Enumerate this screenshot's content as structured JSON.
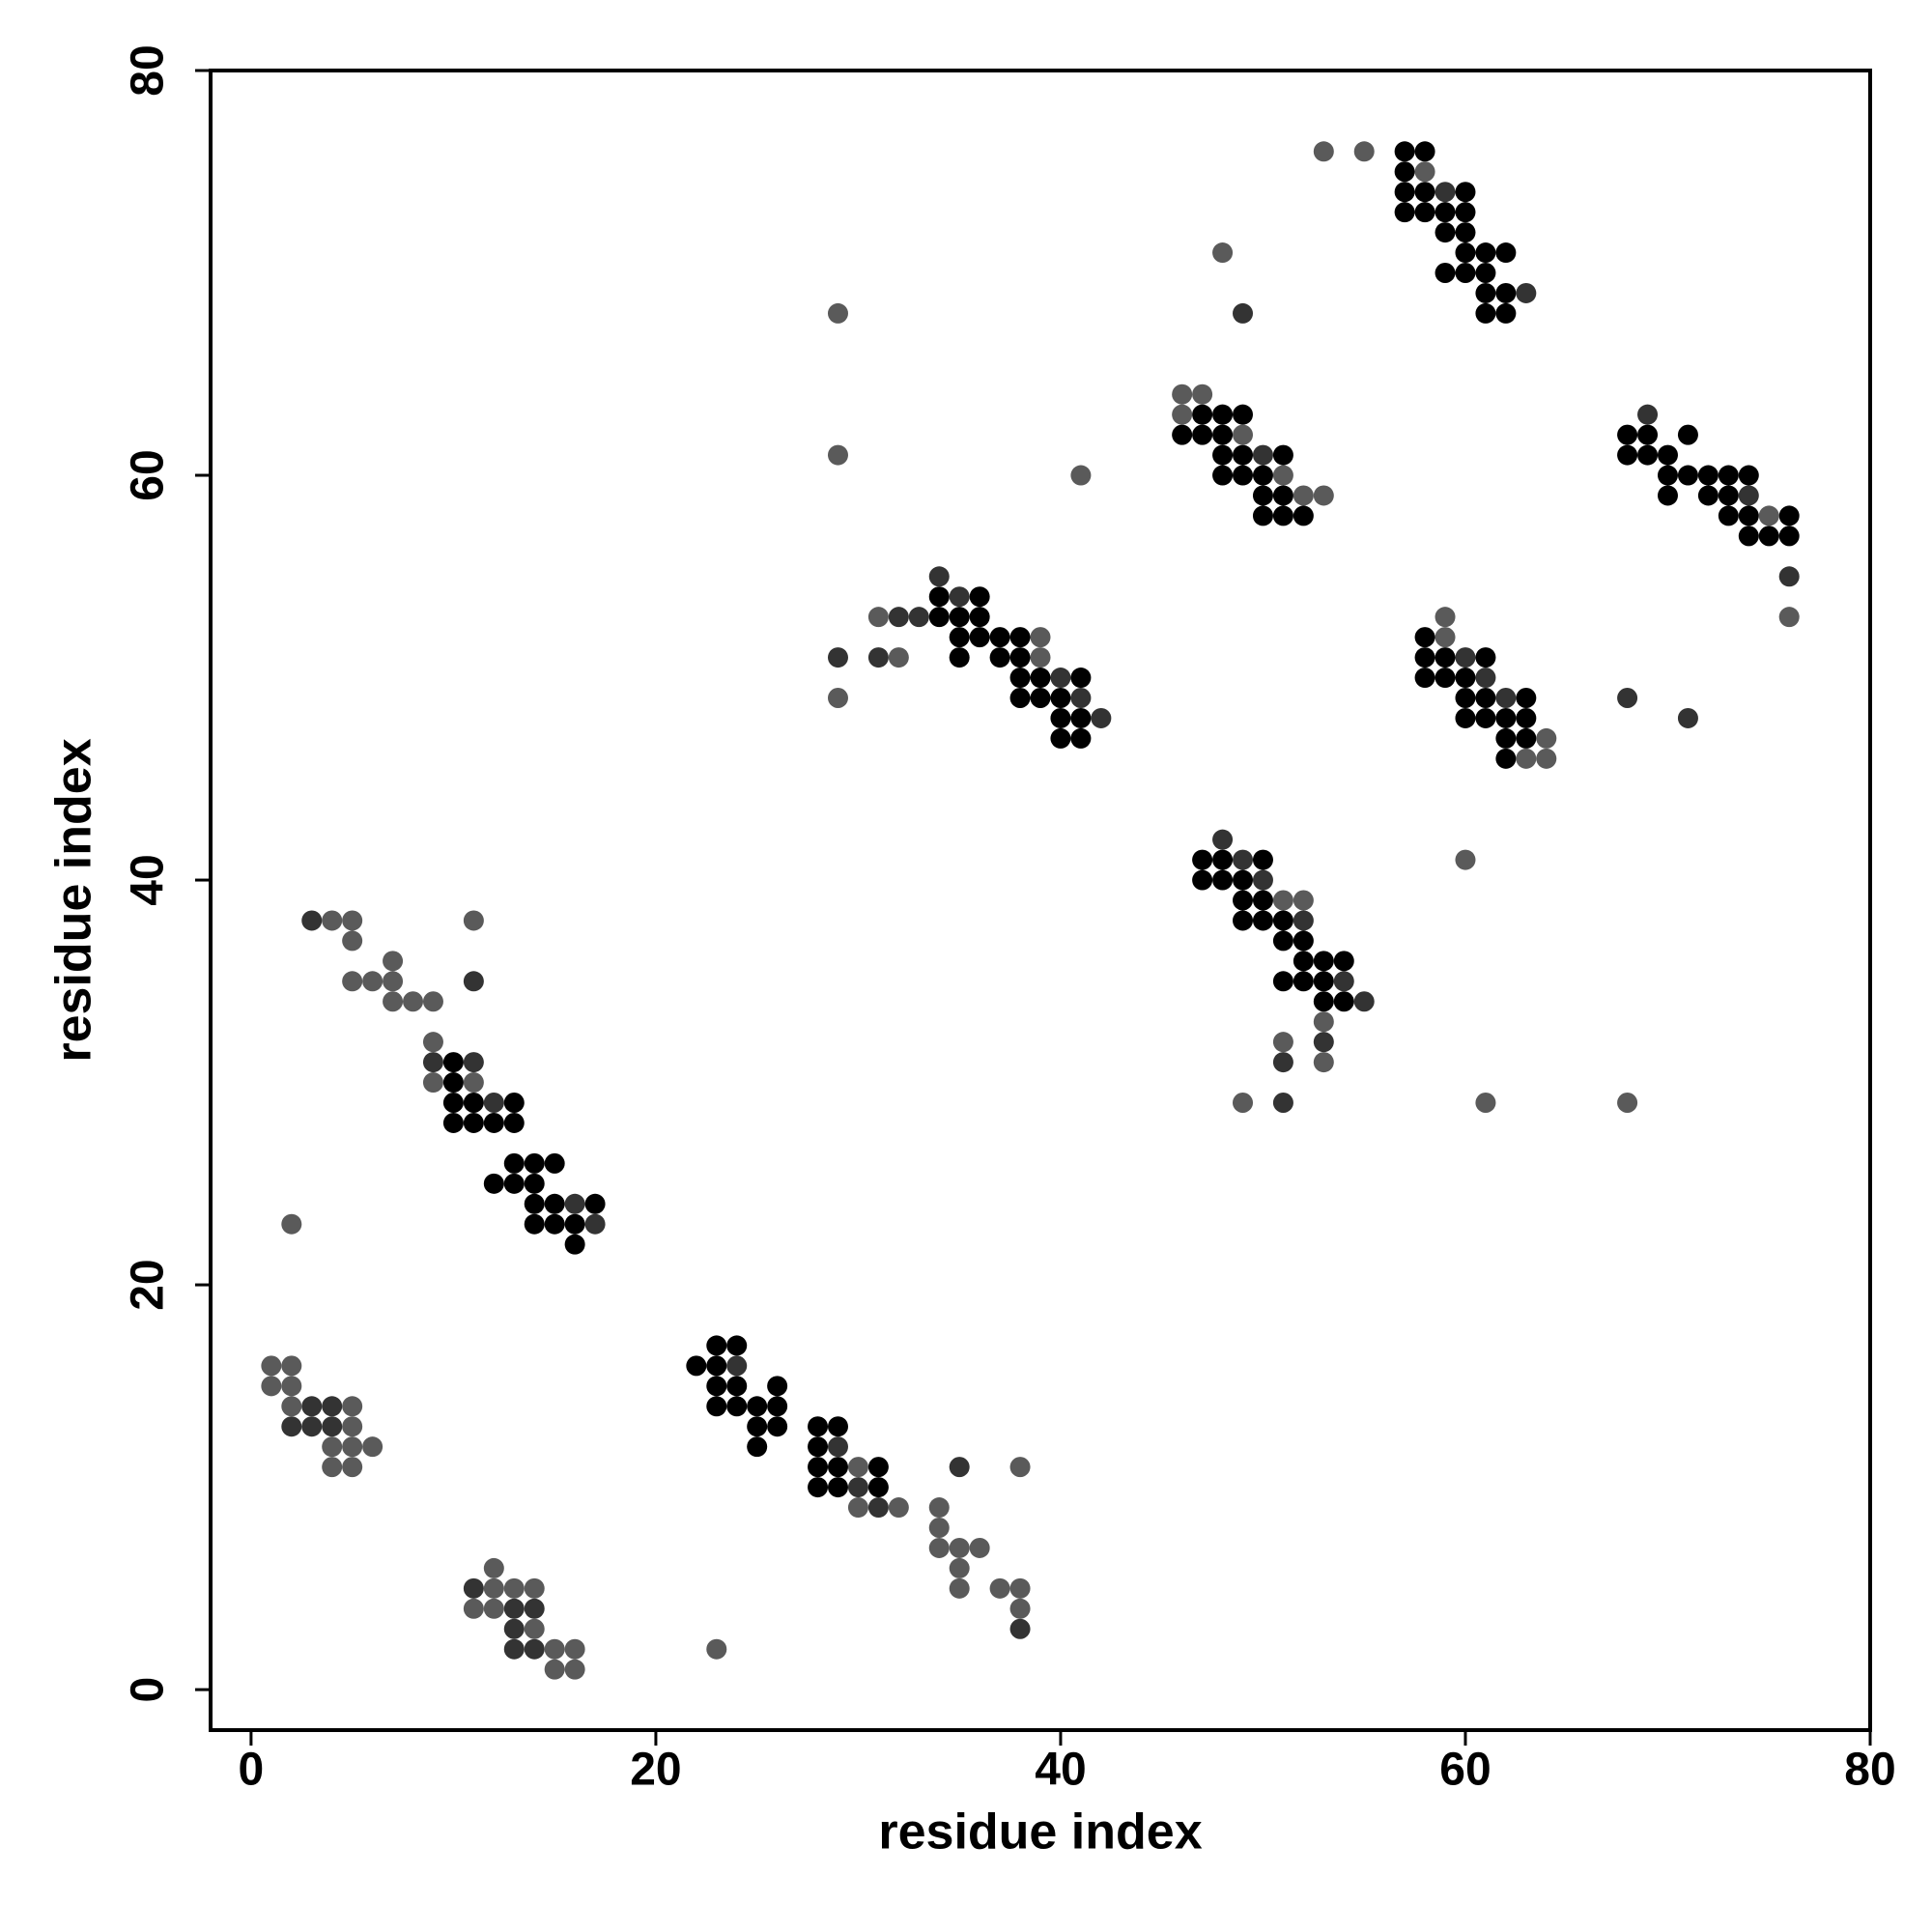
{
  "chart_data": {
    "type": "scatter",
    "x_label": "residue index",
    "y_label": "residue index",
    "xlim": [
      -2,
      80
    ],
    "ylim": [
      -2,
      80
    ],
    "xticks": [
      0,
      20,
      40,
      60,
      80
    ],
    "yticks": [
      0,
      20,
      40,
      60,
      80
    ],
    "series": [
      {
        "color": "#000000",
        "x": [
          10,
          10,
          10,
          11,
          13,
          10,
          11,
          12,
          13,
          13,
          14,
          15,
          12,
          13,
          14,
          14,
          15,
          17,
          14,
          15,
          16,
          16,
          23,
          24,
          22,
          23,
          23,
          24,
          26,
          23,
          24,
          25,
          26,
          25,
          26,
          25,
          28,
          29,
          28,
          28,
          29,
          31,
          28,
          29,
          31,
          34,
          36,
          34,
          35,
          36,
          35,
          36,
          37,
          38,
          35,
          37,
          38,
          38,
          39,
          41,
          38,
          39,
          40,
          40,
          41,
          40,
          41,
          47,
          48,
          49,
          46,
          47,
          48,
          48,
          49,
          51,
          48,
          49,
          50,
          50,
          51,
          50,
          51,
          52,
          57,
          58,
          57,
          57,
          58,
          60,
          57,
          58,
          59,
          60,
          59,
          60,
          60,
          61,
          62,
          59,
          60,
          61,
          61,
          62,
          61,
          62,
          68,
          69,
          71,
          68,
          69,
          70,
          70,
          71,
          72,
          73,
          74,
          70,
          72,
          73,
          73,
          74,
          76,
          74,
          75,
          76,
          58,
          58,
          59,
          61,
          58,
          59,
          60,
          60,
          61,
          63,
          60,
          61,
          62,
          63,
          62,
          63,
          62,
          47,
          48,
          50,
          47,
          48,
          49,
          49,
          50,
          49,
          50,
          51,
          51,
          52,
          52,
          53,
          54,
          51,
          52,
          53,
          53,
          54
        ],
        "values": [
          31,
          30,
          29,
          29,
          29,
          28,
          28,
          28,
          28,
          26,
          26,
          26,
          25,
          25,
          25,
          24,
          24,
          24,
          23,
          23,
          23,
          22,
          17,
          17,
          16,
          16,
          15,
          15,
          15,
          14,
          14,
          14,
          14,
          13,
          13,
          12,
          13,
          13,
          12,
          11,
          11,
          11,
          10,
          10,
          10,
          54,
          54,
          53,
          53,
          53,
          52,
          52,
          52,
          52,
          51,
          51,
          51,
          50,
          50,
          50,
          49,
          49,
          49,
          48,
          48,
          47,
          47,
          63,
          63,
          63,
          62,
          62,
          62,
          61,
          61,
          61,
          60,
          60,
          60,
          59,
          59,
          58,
          58,
          58,
          76,
          76,
          75,
          74,
          74,
          74,
          73,
          73,
          73,
          73,
          72,
          72,
          71,
          71,
          71,
          70,
          70,
          70,
          69,
          69,
          68,
          68,
          62,
          62,
          62,
          61,
          61,
          61,
          60,
          60,
          60,
          60,
          60,
          59,
          59,
          59,
          58,
          58,
          58,
          57,
          57,
          57,
          52,
          51,
          51,
          51,
          50,
          50,
          50,
          49,
          49,
          49,
          48,
          48,
          48,
          48,
          47,
          47,
          46,
          41,
          41,
          41,
          40,
          40,
          40,
          39,
          39,
          38,
          38,
          38,
          37,
          37,
          36,
          36,
          36,
          35,
          35,
          35,
          34,
          34
        ]
      },
      {
        "color": "#333333",
        "x": [
          3,
          4,
          2,
          3,
          4,
          11,
          13,
          14,
          13,
          13,
          14,
          3,
          11,
          9,
          11,
          12,
          16,
          17,
          24,
          29,
          30,
          31,
          35,
          38,
          34,
          35,
          32,
          33,
          29,
          31,
          40,
          41,
          42,
          49,
          50,
          59,
          63,
          69,
          74,
          76,
          60,
          61,
          62,
          68,
          71,
          48,
          49,
          50,
          52,
          54,
          55,
          53,
          51,
          51
        ],
        "values": [
          14,
          14,
          13,
          13,
          13,
          5,
          4,
          4,
          3,
          2,
          2,
          38,
          35,
          31,
          31,
          29,
          24,
          23,
          16,
          12,
          10,
          9,
          11,
          3,
          55,
          54,
          53,
          53,
          51,
          51,
          50,
          49,
          48,
          68,
          61,
          74,
          69,
          63,
          59,
          55,
          51,
          50,
          49,
          49,
          48,
          42,
          41,
          40,
          38,
          35,
          34,
          32,
          31,
          29
        ]
      },
      {
        "color": "#5a5a5a",
        "x": [
          1,
          2,
          1,
          2,
          2,
          5,
          5,
          4,
          5,
          6,
          4,
          5,
          12,
          12,
          13,
          14,
          11,
          12,
          14,
          15,
          16,
          15,
          16,
          23,
          2,
          4,
          5,
          11,
          5,
          7,
          5,
          6,
          7,
          7,
          8,
          9,
          9,
          9,
          11,
          30,
          38,
          30,
          32,
          34,
          34,
          34,
          35,
          36,
          35,
          35,
          37,
          38,
          38,
          29,
          29,
          31,
          39,
          32,
          39,
          29,
          41,
          48,
          46,
          47,
          46,
          49,
          51,
          52,
          53,
          53,
          55,
          58,
          75,
          76,
          59,
          59,
          64,
          63,
          64,
          60,
          51,
          52,
          53,
          51,
          53,
          49,
          61,
          68
        ],
        "values": [
          16,
          16,
          15,
          15,
          14,
          14,
          13,
          12,
          12,
          12,
          11,
          11,
          6,
          5,
          5,
          5,
          4,
          4,
          3,
          2,
          2,
          1,
          1,
          2,
          23,
          38,
          38,
          38,
          37,
          36,
          35,
          35,
          35,
          34,
          34,
          34,
          32,
          30,
          30,
          11,
          11,
          9,
          9,
          9,
          8,
          7,
          7,
          7,
          6,
          5,
          5,
          5,
          4,
          68,
          61,
          53,
          52,
          51,
          51,
          49,
          60,
          71,
          64,
          64,
          63,
          62,
          60,
          59,
          59,
          76,
          76,
          75,
          58,
          53,
          53,
          52,
          47,
          46,
          46,
          41,
          39,
          39,
          33,
          32,
          31,
          29,
          29,
          29
        ]
      }
    ]
  }
}
